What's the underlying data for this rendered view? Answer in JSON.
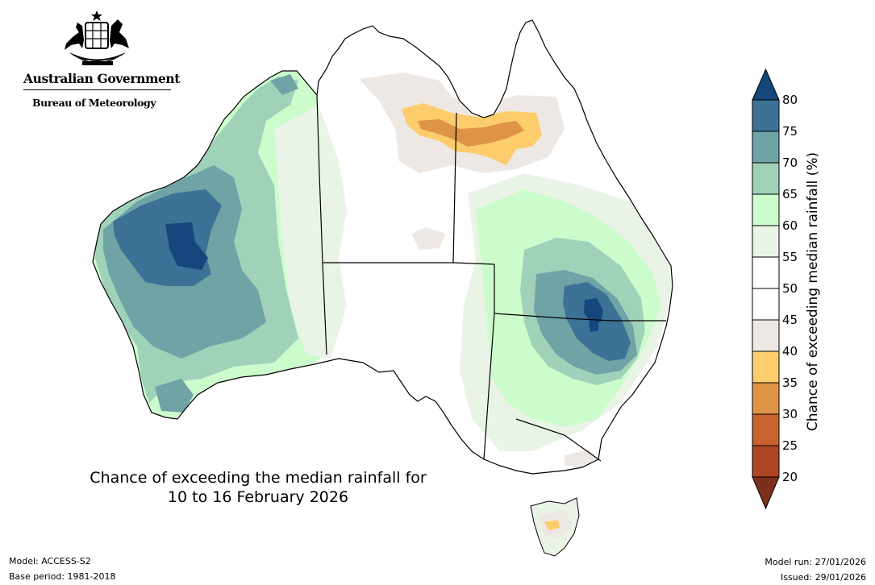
{
  "header": {
    "government": "Australian Government",
    "bureau": "Bureau of Meteorology"
  },
  "map": {
    "title_line1": "Chance of exceeding the median rainfall for",
    "title_line2": "10 to 16 February 2026"
  },
  "colorbar": {
    "label": "Chance of exceeding median rainfall (%)",
    "ticks": [
      "80",
      "75",
      "70",
      "65",
      "60",
      "55",
      "50",
      "45",
      "40",
      "35",
      "30",
      "25",
      "20"
    ],
    "colors": {
      "above_80": "#16477c",
      "75_80": "#3b7296",
      "70_75": "#6fa3a6",
      "65_70": "#9fd2b8",
      "60_65": "#ccfccc",
      "55_60": "#e9f4e6",
      "50_55": "#ffffff",
      "45_50": "#ffffff",
      "40_45": "#eee8e4",
      "35_40": "#fdcc6c",
      "30_35": "#de9447",
      "25_30": "#c9622e",
      "20_25": "#ac4523",
      "below_20": "#7d3019"
    }
  },
  "footer": {
    "model": "Model: ACCESS-S2",
    "base_period": "Base period: 1981-2018",
    "model_run": "Model run: 27/01/2026",
    "issued": "Issued: 29/01/2026"
  }
}
